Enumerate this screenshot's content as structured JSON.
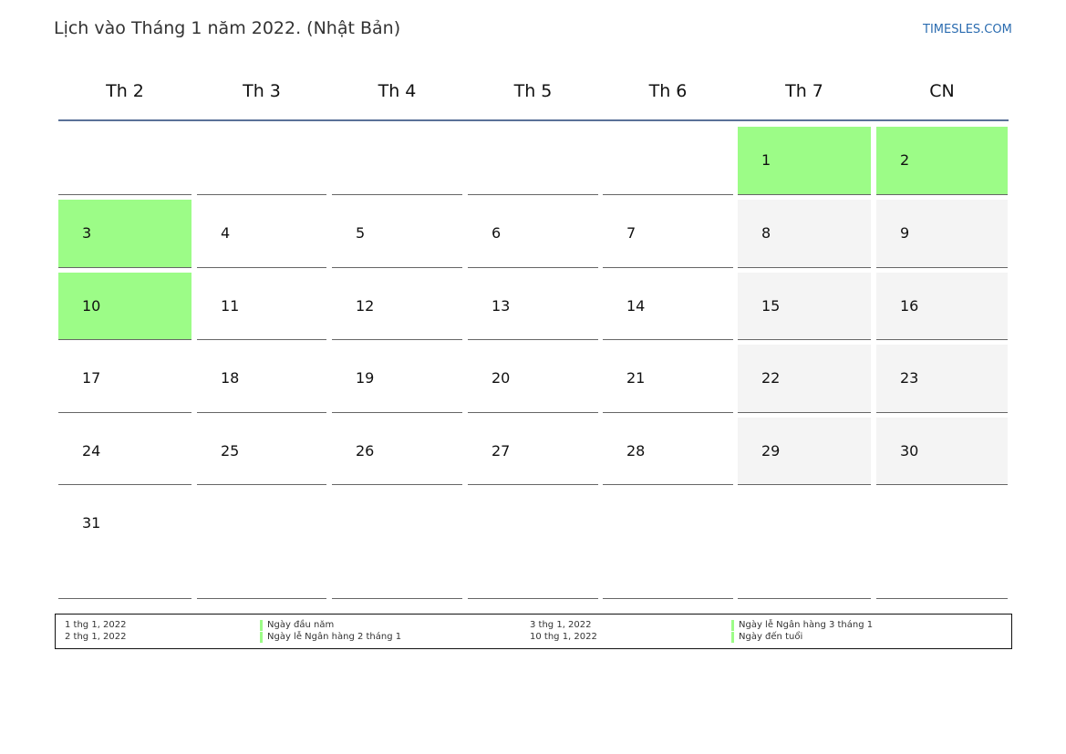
{
  "header": {
    "title": "Lịch vào Tháng 1 năm 2022. (Nhật Bản)",
    "site": "TIMESLES.COM"
  },
  "calendar": {
    "weekdays": [
      "Th 2",
      "Th 3",
      "Th 4",
      "Th 5",
      "Th 6",
      "Th 7",
      "CN"
    ],
    "weeks": [
      [
        "",
        "",
        "",
        "",
        "",
        "1",
        "2"
      ],
      [
        "3",
        "4",
        "5",
        "6",
        "7",
        "8",
        "9"
      ],
      [
        "10",
        "11",
        "12",
        "13",
        "14",
        "15",
        "16"
      ],
      [
        "17",
        "18",
        "19",
        "20",
        "21",
        "22",
        "23"
      ],
      [
        "24",
        "25",
        "26",
        "27",
        "28",
        "29",
        "30"
      ],
      [
        "31",
        "",
        "",
        "",
        "",
        "",
        ""
      ]
    ],
    "holidays": [
      "1",
      "2",
      "3",
      "10"
    ],
    "colors": {
      "holiday": "#9cfc87",
      "weekend": "#f4f4f4",
      "header_rule": "#5a7198"
    }
  },
  "legend": {
    "left": [
      {
        "date": "1 thg 1, 2022",
        "name": "Ngày đầu năm"
      },
      {
        "date": "2 thg 1, 2022",
        "name": "Ngày lễ Ngân hàng 2 tháng 1"
      }
    ],
    "right": [
      {
        "date": "3 thg 1, 2022",
        "name": "Ngày lễ Ngân hàng 3 tháng 1"
      },
      {
        "date": "10 thg 1, 2022",
        "name": "Ngày đến tuổi"
      }
    ]
  }
}
